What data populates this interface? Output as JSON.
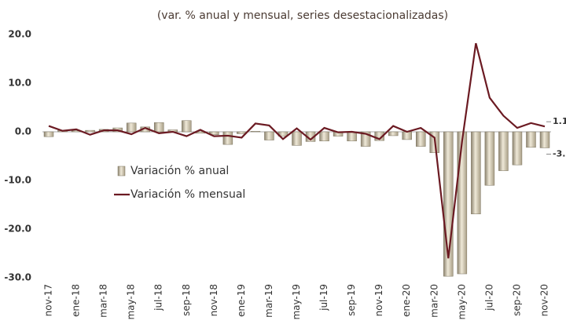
{
  "chart_data": {
    "type": "bar",
    "subtitle": "(var. % anual y mensual, series desestacionalizadas)",
    "categories": [
      "nov-17",
      null,
      "ene-18",
      null,
      "mar-18",
      null,
      "may-18",
      null,
      "jul-18",
      null,
      "sep-18",
      null,
      "nov-18",
      null,
      "ene-19",
      null,
      "mar-19",
      null,
      "may-19",
      null,
      "jul-19",
      null,
      "sep-19",
      null,
      "nov-19",
      null,
      "ene-20",
      null,
      "mar-20",
      null,
      "may-20",
      null,
      "jul-20",
      null,
      "sep-20",
      null,
      "nov-20"
    ],
    "series": [
      {
        "name": "Variación % anual",
        "type": "bar",
        "color": "#c9c0a9",
        "values": [
          -1.0,
          0.3,
          0.2,
          0.3,
          0.5,
          0.8,
          1.8,
          1.0,
          1.9,
          0.4,
          2.3,
          -0.3,
          -0.6,
          -2.6,
          -0.4,
          0.1,
          -1.7,
          -0.9,
          -2.8,
          -2.0,
          -1.9,
          -0.9,
          -1.9,
          -3.0,
          -1.8,
          -0.8,
          -1.6,
          -3.0,
          -4.3,
          -29.7,
          -29.2,
          -16.9,
          -11.0,
          -8.0,
          -6.8,
          -3.2,
          -3.3
        ]
      },
      {
        "name": "Variación % mensual",
        "type": "line",
        "color": "#6b1a22",
        "values": [
          1.2,
          0.2,
          0.5,
          -0.6,
          0.3,
          0.3,
          -0.5,
          0.8,
          -0.3,
          0.0,
          -0.9,
          0.4,
          -0.9,
          -0.8,
          -1.2,
          1.7,
          1.3,
          -1.5,
          0.7,
          -1.6,
          0.8,
          -0.1,
          0.0,
          -0.4,
          -1.5,
          1.2,
          0.0,
          0.8,
          -1.2,
          -26.0,
          -1.9,
          18.2,
          7.0,
          3.3,
          0.8,
          1.8,
          1.1
        ]
      }
    ],
    "ylim": [
      -30,
      20
    ],
    "yticks": [
      {
        "value": 20,
        "label": "20.0"
      },
      {
        "value": 10,
        "label": "10.0"
      },
      {
        "value": 0,
        "label": "0.0"
      },
      {
        "value": -10,
        "label": "-10.0"
      },
      {
        "value": -20,
        "label": "-20.0"
      },
      {
        "value": -30,
        "label": "-30.0"
      }
    ],
    "legend": "center-left"
  }
}
